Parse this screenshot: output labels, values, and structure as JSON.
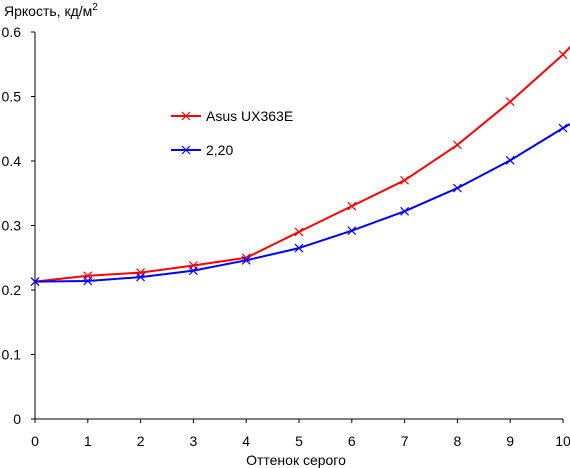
{
  "chart_data": {
    "type": "line",
    "title": "",
    "ylabel": "Яркость, кд/м",
    "ylabel_superscript": "2",
    "xlabel": "Оттенок серого",
    "xlim": [
      0,
      10
    ],
    "ylim": [
      0,
      0.6
    ],
    "x_ticks": [
      "0",
      "1",
      "2",
      "3",
      "4",
      "5",
      "6",
      "7",
      "8",
      "9",
      "10"
    ],
    "y_ticks": [
      "0",
      "0.1",
      "0.2",
      "0.3",
      "0.4",
      "0.5",
      "0.6"
    ],
    "grid": false,
    "legend_position": "upper-left-inside",
    "x": [
      0,
      1,
      2,
      3,
      4,
      5,
      6,
      7,
      8,
      9,
      10
    ],
    "series": [
      {
        "name": "Asus UX363E",
        "color": "#ff0000",
        "values": [
          0.213,
          0.222,
          0.227,
          0.238,
          0.25,
          0.29,
          0.33,
          0.37,
          0.425,
          0.492,
          0.565
        ],
        "line_end": [
          10.15,
          0.578
        ]
      },
      {
        "name": "2,20",
        "color": "#0000ff",
        "values": [
          0.213,
          0.214,
          0.22,
          0.23,
          0.246,
          0.265,
          0.292,
          0.322,
          0.358,
          0.401,
          0.451
        ],
        "line_end": [
          10.15,
          0.458
        ]
      }
    ]
  }
}
